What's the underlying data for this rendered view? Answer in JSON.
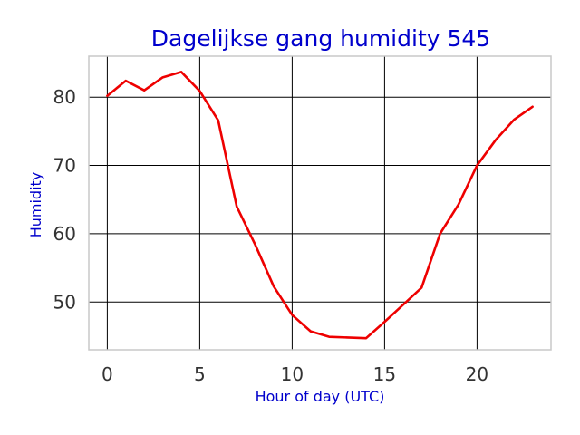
{
  "chart_data": {
    "type": "line",
    "title": "Dagelijkse gang humidity 545",
    "xlabel": "Hour of day (UTC)",
    "ylabel": "Humidity",
    "xlim": [
      -1,
      24
    ],
    "ylim": [
      43,
      86
    ],
    "xticks": [
      0,
      5,
      10,
      15,
      20
    ],
    "yticks": [
      50,
      60,
      70,
      80
    ],
    "xtick_labels": [
      "0",
      "5",
      "10",
      "15",
      "20"
    ],
    "ytick_labels": [
      "50",
      "60",
      "70",
      "80"
    ],
    "grid": true,
    "series": [
      {
        "color": "#ee0000",
        "x": [
          0,
          1,
          2,
          3,
          4,
          5,
          6,
          7,
          8,
          9,
          10,
          11,
          12,
          13,
          14,
          15,
          16,
          17,
          18,
          19,
          20,
          21,
          22,
          23
        ],
        "y": [
          80.2,
          82.4,
          81.0,
          82.9,
          83.7,
          80.9,
          76.6,
          64.0,
          58.4,
          52.3,
          48.1,
          45.7,
          44.9,
          44.8,
          44.7,
          47.1,
          49.6,
          52.1,
          60.0,
          64.3,
          70.0,
          73.7,
          76.7,
          78.6
        ]
      }
    ]
  }
}
